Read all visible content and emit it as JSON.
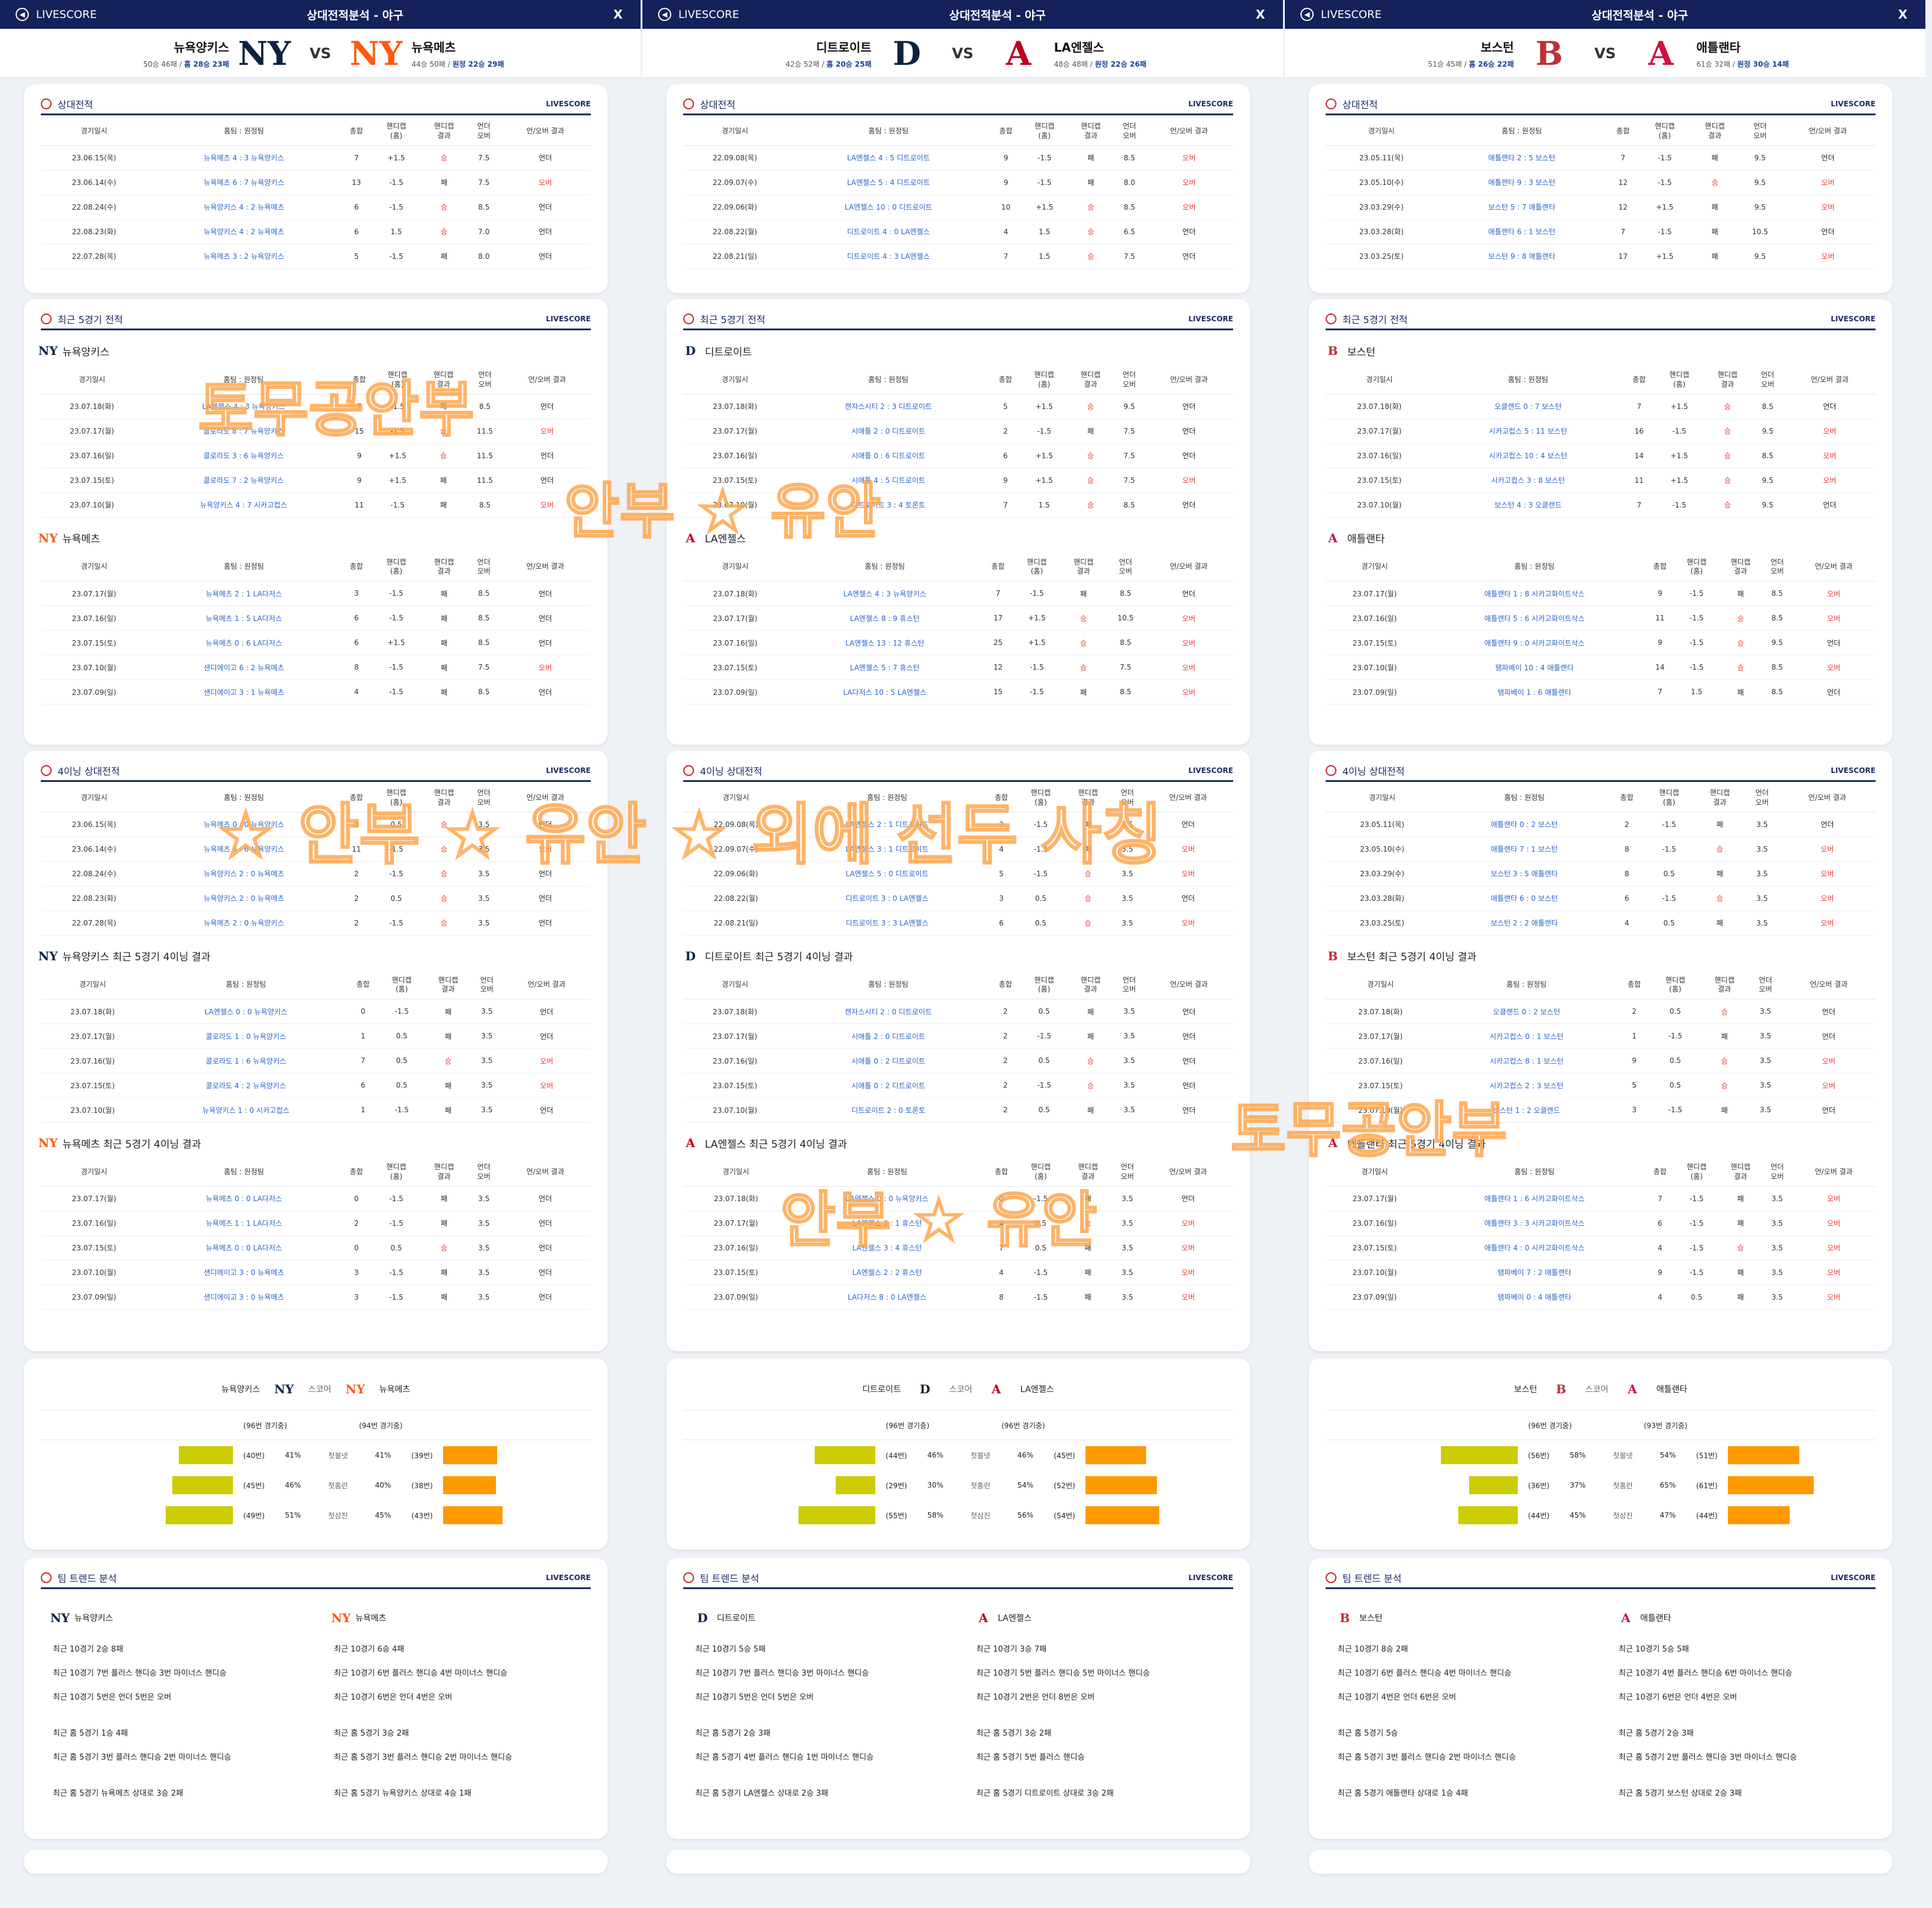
{
  "header": {
    "brand": "LIVESCORE",
    "title": "상대전적분석 - 야구",
    "close": "X",
    "vs": "VS"
  },
  "labels": {
    "h2h": "상대전적",
    "recent5": "최근 5경기 전적",
    "inn4": "4이닝 상대전적",
    "trend": "팀 트렌드 분석",
    "brand": "LIVESCORE",
    "recent5_inn4_suffix": " 최근 5경기 4이닝 결과",
    "score_first": "스코어",
    "cols": [
      "경기일시",
      "홈팀 : 원정팀",
      "총합",
      "핸디캡\n(홈)",
      "핸디캡\n결과",
      "언더\n오버",
      "언/오버 결과"
    ],
    "stat_labels": [
      "첫볼넷",
      "첫홈런",
      "첫삼진"
    ]
  },
  "colors": {
    "navy": "#14215a",
    "yellow": "#cccc00",
    "orange": "#ff9900",
    "red": "#e53935",
    "blue": "#2a66c7"
  },
  "watermarks": [
    "토무공안부",
    "안부 ☆ 유안",
    "☆ 안부 ☆ 유안 ☆ 외에 선두 사칭",
    "토무공안부",
    "안부 ☆ 유안"
  ],
  "matches": [
    {
      "home": {
        "name": "뉴욕양키스",
        "record": "50승 46패 / ",
        "split": "홈 28승 23패",
        "logo": "NY",
        "logo_icon": "yankees-logo-icon",
        "color": "#0c2340"
      },
      "away": {
        "name": "뉴욕메츠",
        "record": "44승 50패 / ",
        "split": "원정 22승 29패",
        "logo": "NY",
        "logo_icon": "mets-logo-icon",
        "color": "#ff5910"
      },
      "h2h": [
        [
          "23.06.15(목)",
          "뉴욕메츠 4 : 3 뉴욕양키스",
          "7",
          "+1.5",
          "승",
          "7.5",
          "언더"
        ],
        [
          "23.06.14(수)",
          "뉴욕메츠 6 : 7 뉴욕양키스",
          "13",
          "-1.5",
          "패",
          "7.5",
          "오버"
        ],
        [
          "22.08.24(수)",
          "뉴욕양키스 4 : 2 뉴욕메츠",
          "6",
          "-1.5",
          "승",
          "8.5",
          "언더"
        ],
        [
          "22.08.23(화)",
          "뉴욕양키스 4 : 2 뉴욕메츠",
          "6",
          "1.5",
          "승",
          "7.0",
          "언더"
        ],
        [
          "22.07.28(목)",
          "뉴욕메츠 3 : 2 뉴욕양키스",
          "5",
          "-1.5",
          "패",
          "8.0",
          "언더"
        ]
      ],
      "recent_home": [
        [
          "23.07.18(화)",
          "LA엔젤스 4 : 3 뉴욕양키스",
          "7",
          "-1.5",
          "패",
          "8.5",
          "언더"
        ],
        [
          "23.07.17(월)",
          "콜로라도 8 : 7 뉴욕양키스",
          "15",
          "-1.5",
          "승",
          "11.5",
          "오버"
        ],
        [
          "23.07.16(일)",
          "콜로라도 3 : 6 뉴욕양키스",
          "9",
          "+1.5",
          "승",
          "11.5",
          "언더"
        ],
        [
          "23.07.15(토)",
          "콜로라도 7 : 2 뉴욕양키스",
          "9",
          "+1.5",
          "패",
          "11.5",
          "언더"
        ],
        [
          "23.07.10(월)",
          "뉴욕양키스 4 : 7 시카고컵스",
          "11",
          "-1.5",
          "패",
          "8.5",
          "오버"
        ]
      ],
      "recent_away": [
        [
          "23.07.17(월)",
          "뉴욕메츠 2 : 1 LA다저스",
          "3",
          "-1.5",
          "패",
          "8.5",
          "언더"
        ],
        [
          "23.07.16(일)",
          "뉴욕메츠 1 : 5 LA다저스",
          "6",
          "-1.5",
          "패",
          "8.5",
          "언더"
        ],
        [
          "23.07.15(토)",
          "뉴욕메츠 0 : 6 LA다저스",
          "6",
          "+1.5",
          "패",
          "8.5",
          "언더"
        ],
        [
          "23.07.10(월)",
          "샌디에이고 6 : 2 뉴욕메츠",
          "8",
          "-1.5",
          "패",
          "7.5",
          "오버"
        ],
        [
          "23.07.09(일)",
          "샌디에이고 3 : 1 뉴욕메츠",
          "4",
          "-1.5",
          "패",
          "8.5",
          "언더"
        ]
      ],
      "inn4": [
        [
          "23.06.15(목)",
          "뉴욕메츠 0 : 0 뉴욕양키스",
          "0",
          "0.5",
          "승",
          "3.5",
          "언더"
        ],
        [
          "23.06.14(수)",
          "뉴욕메츠 5 : 6 뉴욕양키스",
          "11",
          "-1.5",
          "승",
          "3.5",
          "오버"
        ],
        [
          "22.08.24(수)",
          "뉴욕양키스 2 : 0 뉴욕메츠",
          "2",
          "-1.5",
          "승",
          "3.5",
          "언더"
        ],
        [
          "22.08.23(화)",
          "뉴욕양키스 2 : 0 뉴욕메츠",
          "2",
          "0.5",
          "승",
          "3.5",
          "언더"
        ],
        [
          "22.07.28(목)",
          "뉴욕메츠 2 : 0 뉴욕양키스",
          "2",
          "-1.5",
          "승",
          "3.5",
          "언더"
        ]
      ],
      "inn4_home": [
        [
          "23.07.18(화)",
          "LA엔젤스 0 : 0 뉴욕양키스",
          "0",
          "-1.5",
          "패",
          "3.5",
          "언더"
        ],
        [
          "23.07.17(월)",
          "콜로라도 1 : 0 뉴욕양키스",
          "1",
          "0.5",
          "패",
          "3.5",
          "언더"
        ],
        [
          "23.07.16(일)",
          "콜로라도 1 : 6 뉴욕양키스",
          "7",
          "0.5",
          "승",
          "3.5",
          "오버"
        ],
        [
          "23.07.15(토)",
          "콜로라도 4 : 2 뉴욕양키스",
          "6",
          "0.5",
          "패",
          "3.5",
          "오버"
        ],
        [
          "23.07.10(월)",
          "뉴욕양키스 1 : 0 시카고컵스",
          "1",
          "-1.5",
          "패",
          "3.5",
          "언더"
        ]
      ],
      "inn4_away": [
        [
          "23.07.17(월)",
          "뉴욕메츠 0 : 0 LA다저스",
          "0",
          "-1.5",
          "패",
          "3.5",
          "언더"
        ],
        [
          "23.07.16(일)",
          "뉴욕메츠 1 : 1 LA다저스",
          "2",
          "-1.5",
          "패",
          "3.5",
          "언더"
        ],
        [
          "23.07.15(토)",
          "뉴욕메츠 0 : 0 LA다저스",
          "0",
          "0.5",
          "승",
          "3.5",
          "언더"
        ],
        [
          "23.07.10(월)",
          "샌디에이고 3 : 0 뉴욕메츠",
          "3",
          "-1.5",
          "패",
          "3.5",
          "언더"
        ],
        [
          "23.07.09(일)",
          "샌디에이고 3 : 0 뉴욕메츠",
          "3",
          "-1.5",
          "패",
          "3.5",
          "언더"
        ]
      ],
      "stats": {
        "home_games": "(96번 경기중)",
        "away_games": "(94번 경기중)",
        "rows": [
          {
            "hc": "(40번)",
            "hp": 41,
            "ac": "(39번)",
            "ap": 41
          },
          {
            "hc": "(45번)",
            "hp": 46,
            "ac": "(38번)",
            "ap": 40
          },
          {
            "hc": "(49번)",
            "hp": 51,
            "ac": "(43번)",
            "ap": 45
          }
        ]
      },
      "trend_home": [
        "최근 10경기 2승 8패",
        "최근 10경기 7번 플러스 핸디승 3번 마이너스 핸디승",
        "최근 10경기 5번은 언더 5번은 오버",
        "최근 홈 5경기 1승 4패",
        "최근 홈 5경기 3번 플러스 핸디승 2번 마이너스 핸디승",
        "최근 홈 5경기 뉴욕메츠 상대로 3승 2패"
      ],
      "trend_away": [
        "최근 10경기 6승 4패",
        "최근 10경기 6번 플러스 핸디승 4번 마이너스 핸디승",
        "최근 10경기 6번은 언더 4번은 오버",
        "최근 홈 5경기 3승 2패",
        "최근 홈 5경기 3번 플러스 핸디승 2번 마이너스 핸디승",
        "최근 홈 5경기 뉴욕양키스 상대로 4승 1패"
      ]
    },
    {
      "home": {
        "name": "디트로이트",
        "record": "42승 52패 / ",
        "split": "홈 20승 25패",
        "logo": "D",
        "logo_icon": "tigers-logo-icon",
        "color": "#0c2340"
      },
      "away": {
        "name": "LA엔젤스",
        "record": "48승 48패 / ",
        "split": "원정 22승 26패",
        "logo": "A",
        "logo_icon": "angels-logo-icon",
        "color": "#ba0021"
      },
      "h2h": [
        [
          "22.09.08(목)",
          "LA엔젤스 4 : 5 디트로이트",
          "9",
          "-1.5",
          "패",
          "8.5",
          "오버"
        ],
        [
          "22.09.07(수)",
          "LA엔젤스 5 : 4 디트로이트",
          "9",
          "-1.5",
          "패",
          "8.0",
          "오버"
        ],
        [
          "22.09.06(화)",
          "LA엔젤스 10 : 0 디트로이트",
          "10",
          "+1.5",
          "승",
          "8.5",
          "오버"
        ],
        [
          "22.08.22(월)",
          "디트로이트 4 : 0 LA엔젤스",
          "4",
          "1.5",
          "승",
          "6.5",
          "언더"
        ],
        [
          "22.08.21(일)",
          "디트로이트 4 : 3 LA엔젤스",
          "7",
          "1.5",
          "승",
          "7.5",
          "언더"
        ]
      ],
      "recent_home": [
        [
          "23.07.18(화)",
          "캔자스시티 2 : 3 디트로이트",
          "5",
          "+1.5",
          "승",
          "9.5",
          "언더"
        ],
        [
          "23.07.17(월)",
          "시애틀 2 : 0 디트로이트",
          "2",
          "-1.5",
          "패",
          "7.5",
          "언더"
        ],
        [
          "23.07.16(일)",
          "시애틀 0 : 6 디트로이트",
          "6",
          "+1.5",
          "승",
          "7.5",
          "언더"
        ],
        [
          "23.07.15(토)",
          "시애틀 4 : 5 디트로이트",
          "9",
          "+1.5",
          "승",
          "7.5",
          "오버"
        ],
        [
          "23.07.10(월)",
          "디트로이트 3 : 4 토론토",
          "7",
          "1.5",
          "승",
          "8.5",
          "언더"
        ]
      ],
      "recent_away": [
        [
          "23.07.18(화)",
          "LA엔젤스 4 : 3 뉴욕양키스",
          "7",
          "-1.5",
          "패",
          "8.5",
          "언더"
        ],
        [
          "23.07.17(월)",
          "LA엔젤스 8 : 9 휴스턴",
          "17",
          "+1.5",
          "승",
          "10.5",
          "오버"
        ],
        [
          "23.07.16(일)",
          "LA엔젤스 13 : 12 휴스턴",
          "25",
          "+1.5",
          "승",
          "8.5",
          "오버"
        ],
        [
          "23.07.15(토)",
          "LA엔젤스 5 : 7 휴스턴",
          "12",
          "-1.5",
          "승",
          "7.5",
          "오버"
        ],
        [
          "23.07.09(일)",
          "LA다저스 10 : 5 LA엔젤스",
          "15",
          "-1.5",
          "패",
          "8.5",
          "오버"
        ]
      ],
      "inn4": [
        [
          "22.09.08(목)",
          "LA엔젤스 2 : 1 디트로이트",
          "3",
          "-1.5",
          "패",
          "3.5",
          "언더"
        ],
        [
          "22.09.07(수)",
          "LA엔젤스 3 : 1 디트로이트",
          "4",
          "-1.5",
          "패",
          "3.5",
          "오버"
        ],
        [
          "22.09.06(화)",
          "LA엔젤스 5 : 0 디트로이트",
          "5",
          "-1.5",
          "승",
          "3.5",
          "오버"
        ],
        [
          "22.08.22(월)",
          "디트로이트 3 : 0 LA엔젤스",
          "3",
          "0.5",
          "승",
          "3.5",
          "언더"
        ],
        [
          "22.08.21(일)",
          "디트로이트 3 : 3 LA엔젤스",
          "6",
          "0.5",
          "승",
          "3.5",
          "오버"
        ]
      ],
      "inn4_home": [
        [
          "23.07.18(화)",
          "캔자스시티 2 : 0 디트로이트",
          "2",
          "0.5",
          "패",
          "3.5",
          "언더"
        ],
        [
          "23.07.17(월)",
          "시애틀 2 : 0 디트로이트",
          "2",
          "-1.5",
          "패",
          "3.5",
          "언더"
        ],
        [
          "23.07.16(일)",
          "시애틀 0 : 2 디트로이트",
          "2",
          "0.5",
          "승",
          "3.5",
          "언더"
        ],
        [
          "23.07.15(토)",
          "시애틀 0 : 2 디트로이트",
          "2",
          "-1.5",
          "승",
          "3.5",
          "언더"
        ],
        [
          "23.07.10(월)",
          "디트로이트 2 : 0 토론토",
          "2",
          "0.5",
          "패",
          "3.5",
          "언더"
        ]
      ],
      "inn4_away": [
        [
          "23.07.18(화)",
          "LA엔젤스 0 : 0 뉴욕양키스",
          "0",
          "-1.5",
          "패",
          "3.5",
          "언더"
        ],
        [
          "23.07.17(월)",
          "LA엔젤스 3 : 1 휴스턴",
          "4",
          "0.5",
          "승",
          "3.5",
          "오버"
        ],
        [
          "23.07.16(일)",
          "LA엔젤스 3 : 4 휴스턴",
          "7",
          "0.5",
          "패",
          "3.5",
          "오버"
        ],
        [
          "23.07.15(토)",
          "LA엔젤스 2 : 2 휴스턴",
          "4",
          "-1.5",
          "패",
          "3.5",
          "오버"
        ],
        [
          "23.07.09(일)",
          "LA다저스 8 : 0 LA엔젤스",
          "8",
          "-1.5",
          "패",
          "3.5",
          "오버"
        ]
      ],
      "stats": {
        "home_games": "(96번 경기중)",
        "away_games": "(96번 경기중)",
        "rows": [
          {
            "hc": "(44번)",
            "hp": 46,
            "ac": "(45번)",
            "ap": 46
          },
          {
            "hc": "(29번)",
            "hp": 30,
            "ac": "(52번)",
            "ap": 54
          },
          {
            "hc": "(55번)",
            "hp": 58,
            "ac": "(54번)",
            "ap": 56
          }
        ]
      },
      "trend_home": [
        "최근 10경기 5승 5패",
        "최근 10경기 7번 플러스 핸디승 3번 마이너스 핸디승",
        "최근 10경기 5번은 언더 5번은 오버",
        "최근 홈 5경기 2승 3패",
        "최근 홈 5경기 4번 플러스 핸디승 1번 마이너스 핸디승",
        "최근 홈 5경기 LA엔젤스 상대로 2승 3패"
      ],
      "trend_away": [
        "최근 10경기 3승 7패",
        "최근 10경기 5번 플러스 핸디승 5번 마이너스 핸디승",
        "최근 10경기 2번은 언더 8번은 오버",
        "최근 홈 5경기 3승 2패",
        "최근 홈 5경기 5번 플러스 핸디승",
        "최근 홈 5경기 디트로이트 상대로 3승 2패"
      ]
    },
    {
      "home": {
        "name": "보스턴",
        "record": "51승 45패 / ",
        "split": "홈 26승 22패",
        "logo": "B",
        "logo_icon": "redsox-logo-icon",
        "color": "#bd3039"
      },
      "away": {
        "name": "애틀랜타",
        "record": "61승 32패 / ",
        "split": "원정 30승 14패",
        "logo": "A",
        "logo_icon": "braves-logo-icon",
        "color": "#ce1141"
      },
      "h2h": [
        [
          "23.05.11(목)",
          "애틀랜타 2 : 5 보스턴",
          "7",
          "-1.5",
          "패",
          "9.5",
          "언더"
        ],
        [
          "23.05.10(수)",
          "애틀랜타 9 : 3 보스턴",
          "12",
          "-1.5",
          "승",
          "9.5",
          "오버"
        ],
        [
          "23.03.29(수)",
          "보스턴 5 : 7 애틀랜타",
          "12",
          "+1.5",
          "패",
          "9.5",
          "오버"
        ],
        [
          "23.03.28(화)",
          "애틀랜타 6 : 1 보스턴",
          "7",
          "-1.5",
          "패",
          "10.5",
          "언더"
        ],
        [
          "23.03.25(토)",
          "보스턴 9 : 8 애틀랜타",
          "17",
          "+1.5",
          "패",
          "9.5",
          "오버"
        ]
      ],
      "recent_home": [
        [
          "23.07.18(화)",
          "오클랜드 0 : 7 보스턴",
          "7",
          "+1.5",
          "승",
          "8.5",
          "언더"
        ],
        [
          "23.07.17(월)",
          "시카고컵스 5 : 11 보스턴",
          "16",
          "-1.5",
          "승",
          "9.5",
          "오버"
        ],
        [
          "23.07.16(일)",
          "시카고컵스 10 : 4 보스턴",
          "14",
          "+1.5",
          "승",
          "8.5",
          "오버"
        ],
        [
          "23.07.15(토)",
          "시카고컵스 3 : 8 보스턴",
          "11",
          "+1.5",
          "승",
          "9.5",
          "오버"
        ],
        [
          "23.07.10(월)",
          "보스턴 4 : 3 오클랜드",
          "7",
          "-1.5",
          "승",
          "9.5",
          "언더"
        ]
      ],
      "recent_away": [
        [
          "23.07.17(월)",
          "애틀랜타 1 : 8 시카고화이트삭스",
          "9",
          "-1.5",
          "패",
          "8.5",
          "오버"
        ],
        [
          "23.07.16(일)",
          "애틀랜타 5 : 6 시카고화이트삭스",
          "11",
          "-1.5",
          "승",
          "8.5",
          "오버"
        ],
        [
          "23.07.15(토)",
          "애틀랜타 9 : 0 시카고화이트삭스",
          "9",
          "-1.5",
          "승",
          "9.5",
          "언더"
        ],
        [
          "23.07.10(월)",
          "탬파베이 10 : 4 애틀랜타",
          "14",
          "-1.5",
          "승",
          "8.5",
          "오버"
        ],
        [
          "23.07.09(일)",
          "탬파베이 1 : 6 애틀랜타",
          "7",
          "1.5",
          "패",
          "8.5",
          "언더"
        ]
      ],
      "inn4": [
        [
          "23.05.11(목)",
          "애틀랜타 0 : 2 보스턴",
          "2",
          "-1.5",
          "패",
          "3.5",
          "언더"
        ],
        [
          "23.05.10(수)",
          "애틀랜타 7 : 1 보스턴",
          "8",
          "-1.5",
          "승",
          "3.5",
          "오버"
        ],
        [
          "23.03.29(수)",
          "보스턴 3 : 5 애틀랜타",
          "8",
          "0.5",
          "패",
          "3.5",
          "오버"
        ],
        [
          "23.03.28(화)",
          "애틀랜타 6 : 0 보스턴",
          "6",
          "-1.5",
          "승",
          "3.5",
          "오버"
        ],
        [
          "23.03.25(토)",
          "보스턴 2 : 2 애틀랜타",
          "4",
          "0.5",
          "패",
          "3.5",
          "오버"
        ]
      ],
      "inn4_home": [
        [
          "23.07.18(화)",
          "오클랜드 0 : 2 보스턴",
          "2",
          "0.5",
          "승",
          "3.5",
          "언더"
        ],
        [
          "23.07.17(월)",
          "시카고컵스 0 : 1 보스턴",
          "1",
          "-1.5",
          "패",
          "3.5",
          "언더"
        ],
        [
          "23.07.16(일)",
          "시카고컵스 8 : 1 보스턴",
          "9",
          "0.5",
          "승",
          "3.5",
          "오버"
        ],
        [
          "23.07.15(토)",
          "시카고컵스 2 : 3 보스턴",
          "5",
          "0.5",
          "승",
          "3.5",
          "오버"
        ],
        [
          "23.07.10(월)",
          "보스턴 1 : 2 오클랜드",
          "3",
          "-1.5",
          "패",
          "3.5",
          "언더"
        ]
      ],
      "inn4_away": [
        [
          "23.07.17(월)",
          "애틀랜타 1 : 6 시카고화이트삭스",
          "7",
          "-1.5",
          "패",
          "3.5",
          "오버"
        ],
        [
          "23.07.16(일)",
          "애틀랜타 3 : 3 시카고화이트삭스",
          "6",
          "-1.5",
          "패",
          "3.5",
          "오버"
        ],
        [
          "23.07.15(토)",
          "애틀랜타 4 : 0 시카고화이트삭스",
          "4",
          "-1.5",
          "승",
          "3.5",
          "오버"
        ],
        [
          "23.07.10(월)",
          "탬파베이 7 : 2 애틀랜타",
          "9",
          "-1.5",
          "패",
          "3.5",
          "오버"
        ],
        [
          "23.07.09(일)",
          "탬파베이 0 : 4 애틀랜타",
          "4",
          "0.5",
          "패",
          "3.5",
          "오버"
        ]
      ],
      "stats": {
        "home_games": "(96번 경기중)",
        "away_games": "(93번 경기중)",
        "rows": [
          {
            "hc": "(56번)",
            "hp": 58,
            "ac": "(51번)",
            "ap": 54
          },
          {
            "hc": "(36번)",
            "hp": 37,
            "ac": "(61번)",
            "ap": 65
          },
          {
            "hc": "(44번)",
            "hp": 45,
            "ac": "(44번)",
            "ap": 47
          }
        ]
      },
      "trend_home": [
        "최근 10경기 8승 2패",
        "최근 10경기 6번 플러스 핸디승 4번 마이너스 핸디승",
        "최근 10경기 4번은 언더 6번은 오버",
        "최근 홈 5경기 5승",
        "최근 홈 5경기 3번 플러스 핸디승 2번 마이너스 핸디승",
        "최근 홈 5경기 애틀랜타 상대로 1승 4패"
      ],
      "trend_away": [
        "최근 10경기 5승 5패",
        "최근 10경기 4번 플러스 핸디승 6번 마이너스 핸디승",
        "최근 10경기 6번은 언더 4번은 오버",
        "최근 홈 5경기 2승 3패",
        "최근 홈 5경기 2번 플러스 핸디승 3번 마이너스 핸디승",
        "최근 홈 5경기 보스턴 상대로 2승 3패"
      ]
    }
  ]
}
